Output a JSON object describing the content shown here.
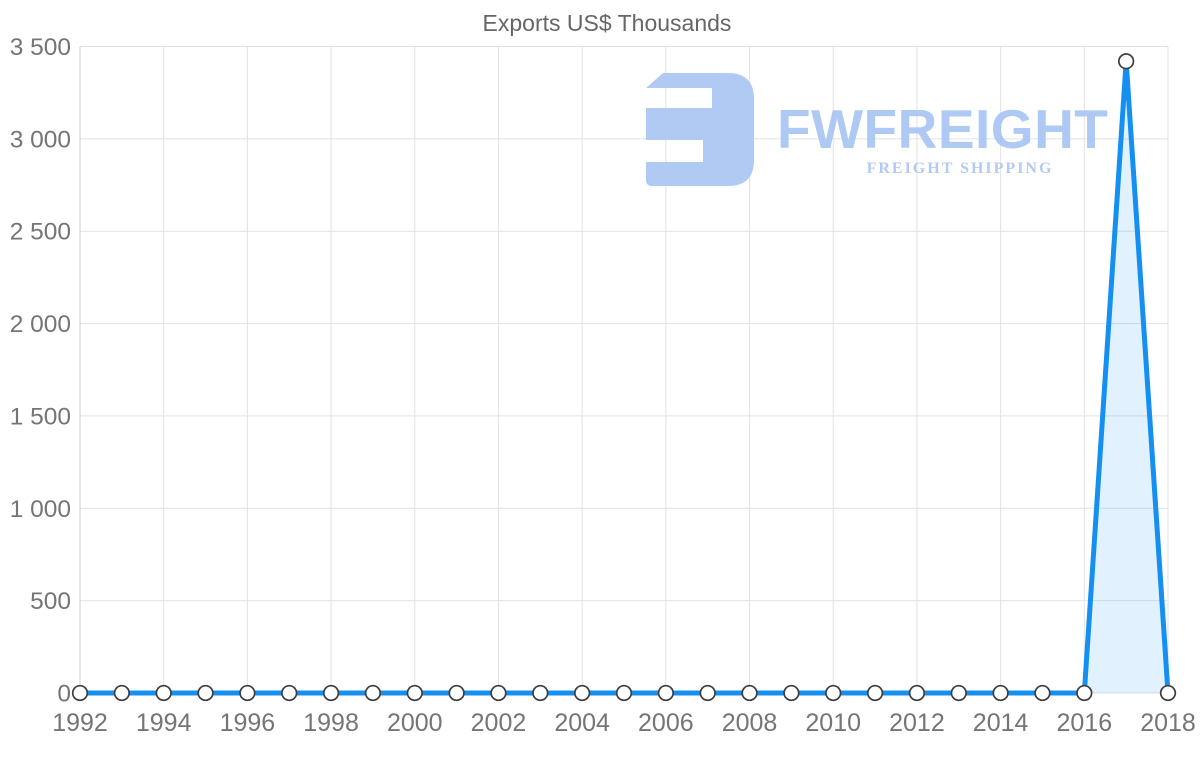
{
  "title": "Exports US$ Thousands",
  "watermark": {
    "brand": "FWFREIGHT",
    "tagline": "FREIGHT SHIPPING",
    "icon": "fwfreight-logo-icon",
    "icon_color": "#a9c5f2",
    "brand_color": "#a6c4f3",
    "tagline_color": "#aec6f2"
  },
  "chart_data": {
    "type": "line",
    "title": "Exports US$ Thousands",
    "x": [
      1992,
      1993,
      1994,
      1995,
      1996,
      1997,
      1998,
      1999,
      2000,
      2001,
      2002,
      2003,
      2004,
      2005,
      2006,
      2007,
      2008,
      2009,
      2010,
      2011,
      2012,
      2013,
      2014,
      2015,
      2016,
      2017,
      2018
    ],
    "series": [
      {
        "name": "Exports US$ Thousands",
        "values": [
          0,
          0,
          0,
          0,
          0,
          0,
          0,
          0,
          0,
          0,
          0,
          0,
          0,
          0,
          0,
          0,
          0,
          0,
          0,
          0,
          0,
          0,
          0,
          0,
          0,
          3420,
          0
        ]
      }
    ],
    "xlabel": "",
    "ylabel": "",
    "xlim": [
      1992,
      2018
    ],
    "ylim": [
      0,
      3500
    ],
    "xticks": [
      1992,
      1994,
      1996,
      1998,
      2000,
      2002,
      2004,
      2006,
      2008,
      2010,
      2012,
      2014,
      2016,
      2018
    ],
    "yticks": [
      0,
      500,
      1000,
      1500,
      2000,
      2500,
      3000,
      3500
    ],
    "grid": true,
    "legend": false,
    "line_color": "#1590f0",
    "area_fill": "rgba(21,144,240,0.13)",
    "marker_fill": "#ffffff",
    "marker_stroke": "#3d3d3d",
    "marker_radius": 7.3,
    "line_width": 5,
    "grid_color": "#e2e2e2",
    "axis_line_color": "#cfcfcf",
    "title_color": "#666666",
    "tick_label_color": "#757575"
  }
}
